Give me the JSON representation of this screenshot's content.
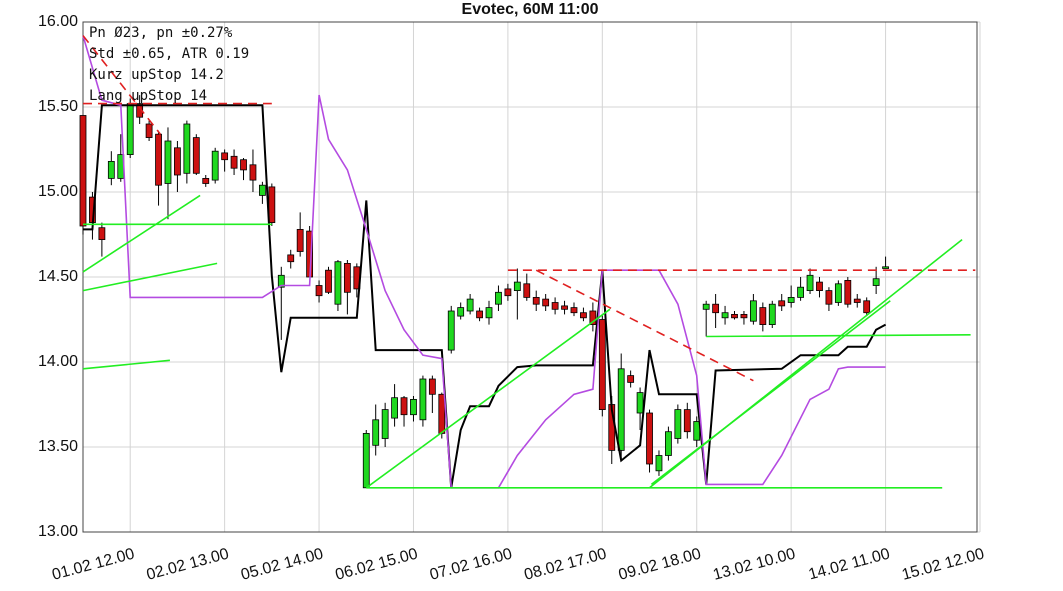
{
  "chart_data": {
    "type": "candlestick",
    "title": "Evotec, 60M 11:00",
    "annotations": [
      "Pn  Ø23, pn ±0.27%",
      "Std ±0.65, ATR 0.19",
      "Kurz upStop 14.2",
      "Lang upStop 14"
    ],
    "up_color": "#1fd81f",
    "down_color": "#cc1111",
    "grid": true,
    "xlim": [
      0,
      95
    ],
    "ylim": [
      13,
      16
    ],
    "yticks": [
      {
        "value": 13,
        "label": "13.00"
      },
      {
        "value": 13.5,
        "label": "13.50"
      },
      {
        "value": 14,
        "label": "14.00"
      },
      {
        "value": 14.5,
        "label": "14.50"
      },
      {
        "value": 15,
        "label": "15.00"
      },
      {
        "value": 15.5,
        "label": "15.50"
      },
      {
        "value": 16,
        "label": "16.00"
      }
    ],
    "xticks": [
      {
        "value": 5,
        "label": "01.02 12.00"
      },
      {
        "value": 15,
        "label": "02.02 13.00"
      },
      {
        "value": 25,
        "label": "05.02 14.00"
      },
      {
        "value": 35,
        "label": "06.02 15.00"
      },
      {
        "value": 45,
        "label": "07.02 16.00"
      },
      {
        "value": 55,
        "label": "08.02 17.00"
      },
      {
        "value": 65,
        "label": "09.02 18.00"
      },
      {
        "value": 75,
        "label": "13.02 10.00"
      },
      {
        "value": 85,
        "label": "14.02 11.00"
      },
      {
        "value": 95,
        "label": "15.02 12.00"
      }
    ],
    "x": [
      0,
      1,
      2,
      3,
      4,
      5,
      6,
      7,
      8,
      9,
      10,
      11,
      12,
      13,
      14,
      15,
      16,
      17,
      18,
      19,
      20,
      21,
      22,
      23,
      24,
      25,
      26,
      27,
      28,
      29,
      30,
      31,
      32,
      33,
      34,
      35,
      36,
      37,
      38,
      39,
      40,
      41,
      42,
      43,
      44,
      45,
      46,
      47,
      48,
      49,
      50,
      51,
      52,
      53,
      54,
      55,
      56,
      57,
      58,
      59,
      60,
      61,
      62,
      63,
      64,
      65,
      66,
      67,
      68,
      69,
      70,
      71,
      72,
      73,
      74,
      75,
      76,
      77,
      78,
      79,
      80,
      81,
      82,
      83,
      84,
      85
    ],
    "open": [
      15.45,
      14.97,
      14.79,
      15.08,
      15.08,
      15.22,
      15.52,
      15.4,
      15.34,
      15.05,
      15.26,
      15.11,
      15.32,
      15.08,
      15.07,
      15.23,
      15.21,
      15.19,
      15.16,
      14.98,
      15.03,
      14.44,
      14.63,
      14.78,
      14.77,
      14.45,
      14.54,
      14.34,
      14.58,
      14.56,
      13.26,
      13.51,
      13.55,
      13.67,
      13.79,
      13.69,
      13.66,
      13.9,
      13.81,
      14.07,
      14.27,
      14.3,
      14.3,
      14.26,
      14.34,
      14.43,
      14.42,
      14.46,
      14.38,
      14.37,
      14.35,
      14.33,
      14.32,
      14.29,
      14.3,
      14.25,
      13.75,
      13.48,
      13.92,
      13.7,
      13.7,
      13.36,
      13.45,
      13.55,
      13.72,
      13.54,
      14.31,
      14.34,
      14.26,
      14.28,
      14.28,
      14.24,
      14.32,
      14.22,
      14.36,
      14.35,
      14.38,
      14.42,
      14.47,
      14.42,
      14.35,
      14.48,
      14.37,
      14.36,
      14.45,
      14.55
    ],
    "high": [
      15.45,
      15.0,
      14.82,
      15.24,
      15.34,
      15.55,
      15.57,
      15.42,
      15.36,
      15.38,
      15.3,
      15.42,
      15.34,
      15.1,
      15.26,
      15.25,
      15.25,
      15.2,
      15.25,
      15.06,
      15.05,
      14.56,
      14.66,
      14.88,
      14.8,
      14.48,
      14.56,
      14.6,
      14.6,
      14.58,
      13.6,
      13.75,
      13.76,
      13.87,
      13.8,
      13.8,
      13.92,
      13.92,
      13.82,
      14.33,
      14.35,
      14.4,
      14.32,
      14.36,
      14.45,
      14.46,
      14.55,
      14.52,
      14.42,
      14.4,
      14.38,
      14.36,
      14.35,
      14.32,
      14.35,
      14.28,
      13.8,
      14.05,
      13.95,
      13.85,
      13.72,
      13.48,
      13.62,
      13.75,
      13.76,
      13.68,
      14.36,
      14.4,
      14.33,
      14.3,
      14.3,
      14.4,
      14.35,
      14.36,
      14.4,
      14.45,
      14.5,
      14.55,
      14.5,
      14.44,
      14.48,
      14.5,
      14.4,
      14.38,
      14.56,
      14.62
    ],
    "low": [
      14.75,
      14.72,
      14.62,
      15.04,
      15.06,
      15.2,
      15.4,
      15.3,
      14.92,
      14.84,
      15.0,
      15.05,
      15.1,
      15.03,
      15.05,
      15.12,
      15.1,
      15.07,
      15.0,
      14.93,
      14.8,
      14.13,
      14.55,
      14.62,
      14.5,
      14.35,
      14.4,
      14.3,
      14.28,
      14.38,
      13.26,
      13.45,
      13.5,
      13.62,
      13.62,
      13.65,
      13.62,
      13.7,
      13.55,
      14.05,
      14.25,
      14.28,
      14.24,
      14.22,
      14.3,
      14.36,
      14.25,
      14.36,
      14.3,
      14.3,
      14.28,
      14.28,
      14.27,
      14.24,
      14.18,
      13.68,
      13.4,
      13.42,
      13.85,
      13.6,
      13.35,
      13.33,
      13.42,
      13.52,
      13.55,
      13.5,
      14.15,
      14.2,
      14.22,
      14.25,
      14.22,
      14.22,
      14.18,
      14.2,
      14.3,
      14.32,
      14.36,
      14.4,
      14.38,
      14.3,
      14.33,
      14.32,
      14.32,
      14.27,
      14.4,
      14.55
    ],
    "close": [
      14.8,
      14.82,
      14.72,
      15.18,
      15.22,
      15.52,
      15.44,
      15.32,
      15.04,
      15.3,
      15.1,
      15.4,
      15.11,
      15.05,
      15.24,
      15.19,
      15.14,
      15.13,
      15.07,
      15.04,
      14.82,
      14.51,
      14.59,
      14.65,
      14.5,
      14.39,
      14.41,
      14.59,
      14.41,
      14.43,
      13.58,
      13.66,
      13.72,
      13.79,
      13.69,
      13.78,
      13.9,
      13.81,
      13.58,
      14.3,
      14.32,
      14.37,
      14.26,
      14.32,
      14.41,
      14.39,
      14.47,
      14.38,
      14.34,
      14.33,
      14.31,
      14.31,
      14.29,
      14.26,
      14.22,
      13.72,
      13.48,
      13.96,
      13.88,
      13.82,
      13.4,
      13.45,
      13.59,
      13.72,
      13.59,
      13.65,
      14.34,
      14.29,
      14.29,
      14.26,
      14.26,
      14.36,
      14.22,
      14.34,
      14.33,
      14.38,
      14.44,
      14.51,
      14.42,
      14.34,
      14.46,
      14.34,
      14.35,
      14.29,
      14.49,
      14.56
    ],
    "overlays": [
      {
        "color": "#000000",
        "style": "solid",
        "x": [
          0,
          1,
          2,
          19,
          20,
          21,
          22,
          23,
          29,
          30,
          31,
          38,
          39,
          40,
          41,
          43,
          44,
          46,
          48,
          54,
          55,
          56,
          57,
          59,
          60,
          61,
          65,
          66,
          67,
          74,
          76,
          80,
          81,
          83,
          84,
          85
        ],
        "values": [
          14.78,
          14.78,
          15.51,
          15.51,
          14.51,
          13.94,
          14.26,
          14.26,
          14.26,
          14.95,
          14.07,
          14.07,
          13.26,
          13.6,
          13.74,
          13.74,
          13.86,
          13.97,
          13.98,
          13.98,
          14.54,
          13.72,
          13.42,
          13.51,
          14.07,
          13.81,
          13.81,
          13.28,
          13.95,
          13.96,
          14.04,
          14.04,
          14.09,
          14.09,
          14.19,
          14.22
        ]
      },
      {
        "color": "#b44be1",
        "style": "solid",
        "x": [
          0,
          2,
          4,
          5,
          19,
          21,
          24,
          25,
          26,
          28,
          30,
          32,
          34,
          36,
          38,
          39,
          44,
          46,
          49,
          52,
          54,
          55,
          56,
          61,
          63,
          65,
          66,
          72,
          74,
          77,
          79,
          80,
          81,
          85
        ],
        "values": [
          15.92,
          15.54,
          15.51,
          14.38,
          14.38,
          14.45,
          14.45,
          15.57,
          15.31,
          15.13,
          14.78,
          14.42,
          14.19,
          14.04,
          14.02,
          13.26,
          13.26,
          13.45,
          13.66,
          13.81,
          13.84,
          14.54,
          14.54,
          14.54,
          14.34,
          13.92,
          13.28,
          13.28,
          13.45,
          13.78,
          13.84,
          13.96,
          13.97,
          13.97
        ]
      },
      {
        "color": "#22ee22",
        "style": "solid",
        "x": [
          0,
          12.4
        ],
        "values": [
          14.53,
          14.98
        ]
      },
      {
        "color": "#22ee22",
        "style": "solid",
        "x": [
          0,
          20
        ],
        "values": [
          14.81,
          14.81
        ]
      },
      {
        "color": "#22ee22",
        "style": "solid",
        "x": [
          0,
          14.2
        ],
        "values": [
          14.42,
          14.58
        ]
      },
      {
        "color": "#22ee22",
        "style": "solid",
        "x": [
          0,
          9.2
        ],
        "values": [
          13.96,
          14.01
        ]
      },
      {
        "color": "#22ee22",
        "style": "solid",
        "x": [
          30,
          55.8
        ],
        "values": [
          13.26,
          14.31
        ]
      },
      {
        "color": "#22ee22",
        "style": "solid",
        "x": [
          30,
          91
        ],
        "values": [
          13.26,
          13.26
        ]
      },
      {
        "color": "#22ee22",
        "style": "solid",
        "x": [
          60,
          93.1
        ],
        "values": [
          13.26,
          14.72
        ]
      },
      {
        "color": "#22ee22",
        "style": "solid",
        "x": [
          60.2,
          85.5
        ],
        "values": [
          13.28,
          14.36
        ]
      },
      {
        "color": "#22ee22",
        "style": "solid",
        "x": [
          66,
          94
        ],
        "values": [
          14.15,
          14.16
        ]
      },
      {
        "color": "#e02020",
        "style": "dashed",
        "x": [
          0,
          20
        ],
        "values": [
          15.52,
          15.52
        ]
      },
      {
        "color": "#e02020",
        "style": "dashed",
        "x": [
          0,
          8.2
        ],
        "values": [
          15.92,
          15.34
        ]
      },
      {
        "color": "#e02020",
        "style": "dashed",
        "x": [
          45,
          94.5
        ],
        "values": [
          14.54,
          14.54
        ]
      },
      {
        "color": "#e02020",
        "style": "dashed",
        "x": [
          48,
          71
        ],
        "values": [
          14.54,
          13.89
        ]
      }
    ]
  }
}
